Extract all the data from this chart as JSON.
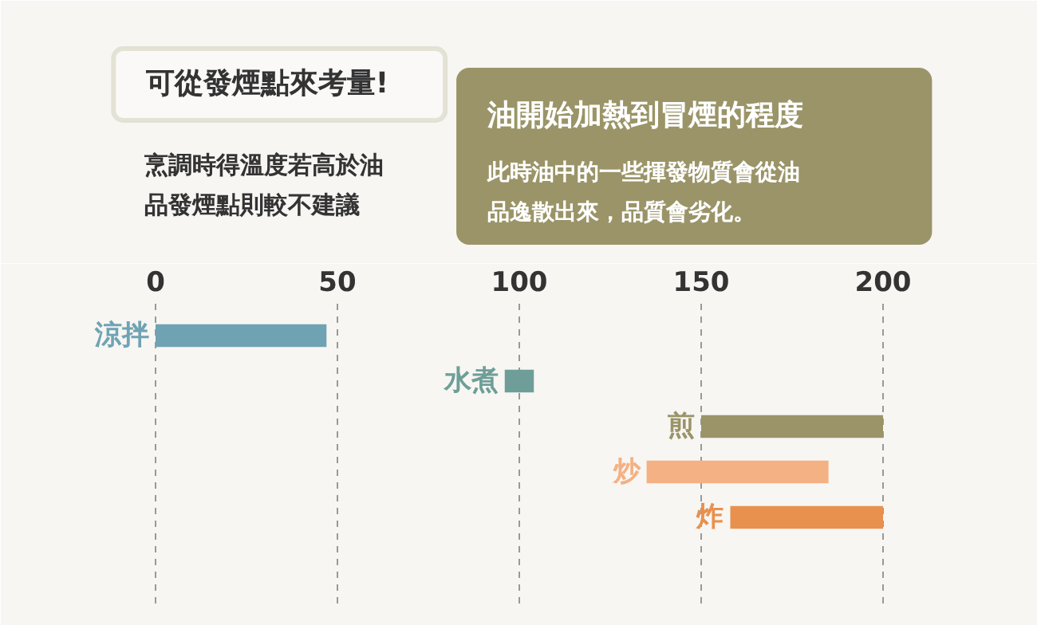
{
  "chart_data": {
    "type": "bar",
    "orientation": "horizontal",
    "title": "可從發煙點來考量!",
    "subtitle": "烹調時得溫度若高於油品發煙點則較不建議",
    "annotations": [
      "油開始加熱到冒煙的程度",
      "此時油中的一些揮發物質會從油品逸散出來，品質會劣化。"
    ],
    "categories": [
      "涼拌",
      "水煮",
      "煎",
      "炒",
      "炸"
    ],
    "base": [
      0,
      96,
      150,
      135,
      158
    ],
    "values": [
      47,
      8,
      50,
      50,
      42
    ],
    "colors": [
      "#6fa3b3",
      "#6f9e98",
      "#9a9468",
      "#f4b183",
      "#e8914f"
    ],
    "xlim": [
      -25,
      225
    ],
    "xticks": [
      0,
      50,
      100,
      150,
      200
    ],
    "grid": "x"
  }
}
